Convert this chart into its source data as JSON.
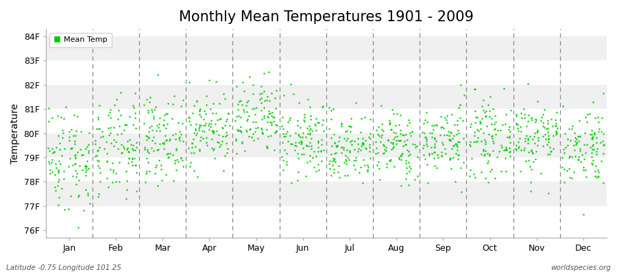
{
  "title": "Monthly Mean Temperatures 1901 - 2009",
  "ylabel": "Temperature",
  "xlabel_labels": [
    "Jan",
    "Feb",
    "Mar",
    "Apr",
    "May",
    "Jun",
    "Jul",
    "Aug",
    "Sep",
    "Oct",
    "Nov",
    "Dec"
  ],
  "ytick_labels": [
    "76F",
    "77F",
    "78F",
    "79F",
    "80F",
    "81F",
    "82F",
    "83F",
    "84F"
  ],
  "ytick_values": [
    76,
    77,
    78,
    79,
    80,
    81,
    82,
    83,
    84
  ],
  "ylim": [
    75.7,
    84.3
  ],
  "legend_label": "Mean Temp",
  "dot_color": "#00CC00",
  "dot_size": 3,
  "background_color": "#FFFFFF",
  "band_color_light": "#F0F0F0",
  "band_color_white": "#FFFFFF",
  "watermark_left": "Latitude -0.75 Longitude 101.25",
  "watermark_right": "worldspecies.org",
  "title_fontsize": 15,
  "axis_label_fontsize": 10,
  "tick_fontsize": 9,
  "num_years": 109,
  "seed": 42,
  "monthly_means": [
    79.0,
    79.3,
    79.8,
    80.2,
    80.5,
    79.7,
    79.4,
    79.5,
    79.7,
    79.8,
    79.9,
    79.5
  ],
  "monthly_stds": [
    1.1,
    1.0,
    0.85,
    0.75,
    0.8,
    0.78,
    0.72,
    0.72,
    0.72,
    0.75,
    0.78,
    0.82
  ]
}
